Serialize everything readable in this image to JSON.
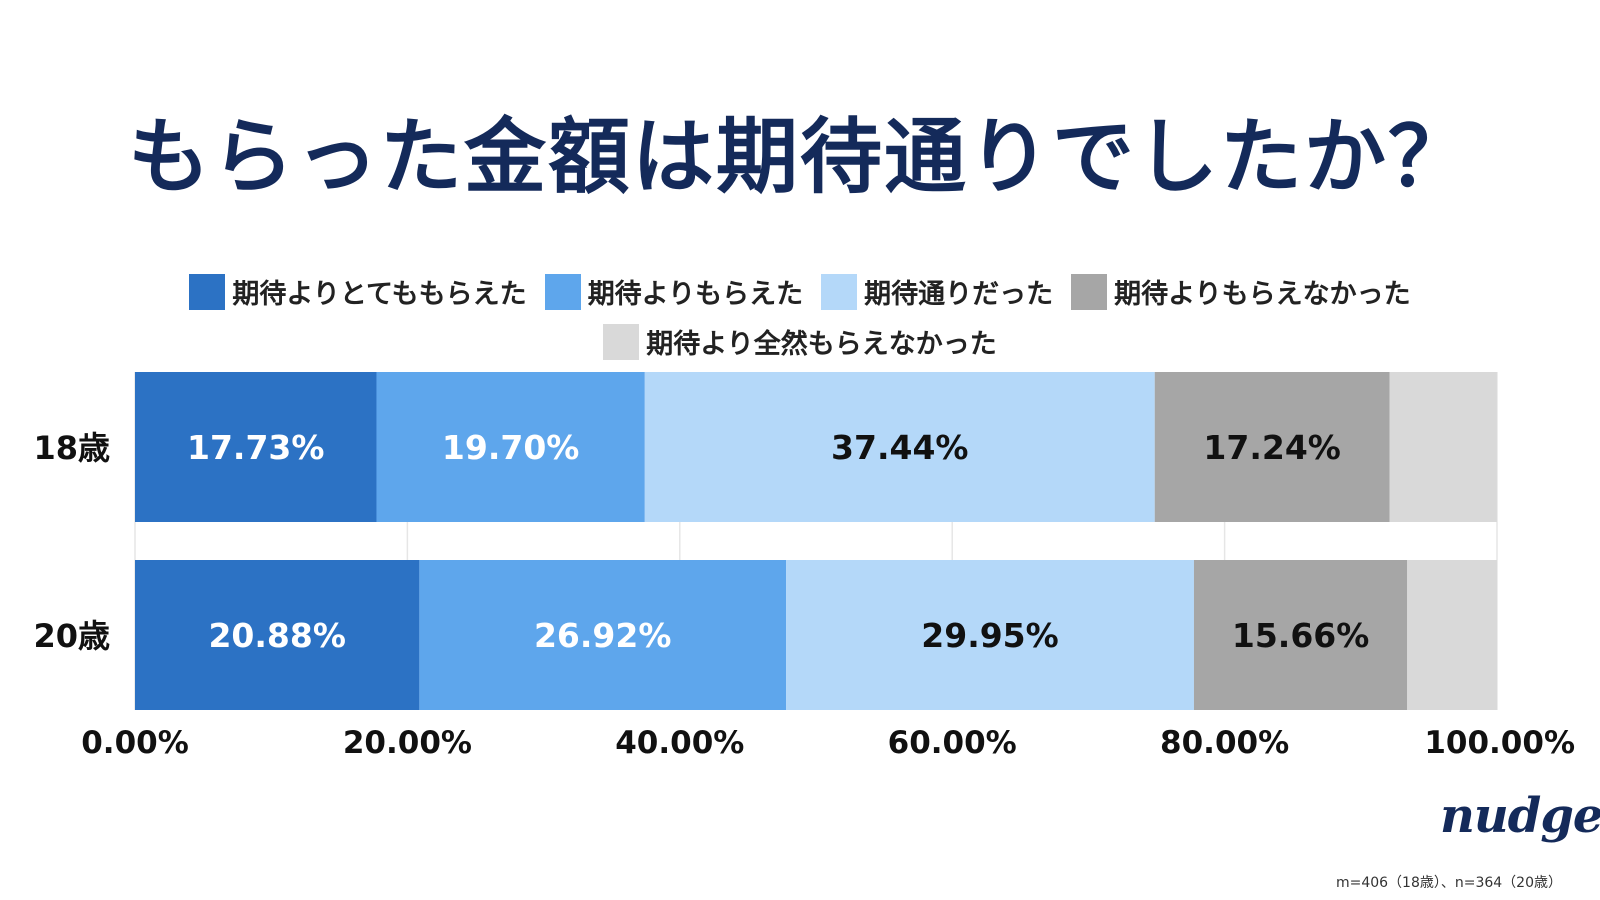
{
  "title": "もらった金額は期待通りでしたか？",
  "footnote": "m=406（18歳）、n=364（20歳）",
  "logo_text": "nudge",
  "chart_data": {
    "type": "bar",
    "orientation": "horizontal",
    "stacked": true,
    "categories": [
      "18歳",
      "20歳"
    ],
    "series": [
      {
        "name": "期待よりとてももらえた",
        "color": "#2c72c4",
        "label_color": "#ffffff",
        "values": [
          17.73,
          20.88
        ],
        "labels": [
          "17.73%",
          "20.88%"
        ]
      },
      {
        "name": "期待よりもらえた",
        "color": "#5ea6ec",
        "label_color": "#ffffff",
        "values": [
          19.7,
          26.92
        ],
        "labels": [
          "19.70%",
          "26.92%"
        ]
      },
      {
        "name": "期待通りだった",
        "color": "#b4d8f9",
        "label_color": "#111111",
        "values": [
          37.44,
          29.95
        ],
        "labels": [
          "37.44%",
          "29.95%"
        ]
      },
      {
        "name": "期待よりもらえなかった",
        "color": "#a6a6a6",
        "label_color": "#111111",
        "values": [
          17.24,
          15.66
        ],
        "labels": [
          "17.24%",
          "15.66%"
        ]
      },
      {
        "name": "期待より全然もらえなかった",
        "color": "#d9d9d9",
        "label_color": "#111111",
        "values": [
          7.88,
          6.59
        ],
        "labels": [
          "",
          ""
        ]
      }
    ],
    "xlim": [
      0,
      100
    ],
    "x_ticks": [
      "0.00%",
      "20.00%",
      "40.00%",
      "60.00%",
      "80.00%",
      "100.00%"
    ],
    "x_tick_values": [
      0,
      20,
      40,
      60,
      80,
      100
    ],
    "grid": true,
    "legend_position": "top"
  }
}
